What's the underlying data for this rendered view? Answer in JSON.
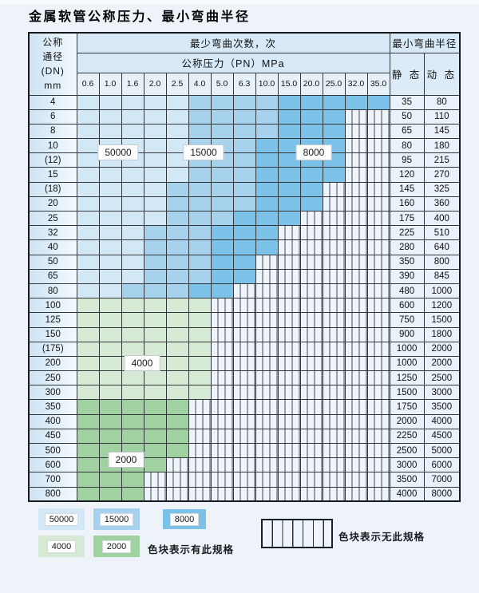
{
  "page": {
    "title": "金属软管公称压力、最小弯曲半径"
  },
  "table": {
    "header": {
      "dn_lines": [
        "公称",
        "通径",
        "(DN)",
        "mm"
      ],
      "cycles_title": "最少弯曲次数，次",
      "radius_title": "最小弯曲半径",
      "pressure_title": "公称压力（PN）MPa",
      "static_label": "静 态",
      "dynamic_label": "动 态",
      "pressures": [
        "0.6",
        "1.0",
        "1.6",
        "2.0",
        "2.5",
        "4.0",
        "5.0",
        "6.3",
        "10.0",
        "15.0",
        "20.0",
        "25.0",
        "32.0",
        "35.0"
      ]
    },
    "zone_colors": {
      "50000": "#d3e8f7",
      "15000": "#a6d2ee",
      "8000": "#7cc1e7",
      "4000": "#d6e9d5",
      "2000": "#a0d1a1",
      "no_spec_fill": "#eef4fb"
    },
    "rows": [
      {
        "dn": "4",
        "cells": [
          "50",
          "50",
          "50",
          "50",
          "50",
          "15",
          "15",
          "15",
          "15",
          "8",
          "8",
          "8",
          "8",
          "8"
        ],
        "static": "35",
        "dynamic": "80"
      },
      {
        "dn": "6",
        "cells": [
          "50",
          "50",
          "50",
          "50",
          "50",
          "15",
          "15",
          "15",
          "15",
          "8",
          "8",
          "8",
          "x",
          "x"
        ],
        "static": "50",
        "dynamic": "110"
      },
      {
        "dn": "8",
        "cells": [
          "50",
          "50",
          "50",
          "50",
          "50",
          "15",
          "15",
          "15",
          "15",
          "8",
          "8",
          "8",
          "x",
          "x"
        ],
        "static": "65",
        "dynamic": "145"
      },
      {
        "dn": "10",
        "cells": [
          "50",
          "50",
          "50",
          "50",
          "50",
          "15",
          "15",
          "15",
          "8",
          "8",
          "8",
          "8",
          "x",
          "x"
        ],
        "static": "80",
        "dynamic": "180"
      },
      {
        "dn": "(12)",
        "cells": [
          "50",
          "50",
          "50",
          "50",
          "50",
          "15",
          "15",
          "15",
          "8",
          "8",
          "8",
          "8",
          "x",
          "x"
        ],
        "static": "95",
        "dynamic": "215"
      },
      {
        "dn": "15",
        "cells": [
          "50",
          "50",
          "50",
          "50",
          "50",
          "15",
          "15",
          "15",
          "8",
          "8",
          "8",
          "8",
          "x",
          "x"
        ],
        "static": "120",
        "dynamic": "270"
      },
      {
        "dn": "(18)",
        "cells": [
          "50",
          "50",
          "50",
          "50",
          "15",
          "15",
          "15",
          "15",
          "8",
          "8",
          "8",
          "x",
          "x",
          "x"
        ],
        "static": "145",
        "dynamic": "325"
      },
      {
        "dn": "20",
        "cells": [
          "50",
          "50",
          "50",
          "50",
          "15",
          "15",
          "15",
          "15",
          "8",
          "8",
          "8",
          "x",
          "x",
          "x"
        ],
        "static": "160",
        "dynamic": "360"
      },
      {
        "dn": "25",
        "cells": [
          "50",
          "50",
          "50",
          "50",
          "15",
          "15",
          "15",
          "8",
          "8",
          "8",
          "x",
          "x",
          "x",
          "x"
        ],
        "static": "175",
        "dynamic": "400"
      },
      {
        "dn": "32",
        "cells": [
          "50",
          "50",
          "50",
          "15",
          "15",
          "15",
          "8",
          "8",
          "8",
          "x",
          "x",
          "x",
          "x",
          "x"
        ],
        "static": "225",
        "dynamic": "510"
      },
      {
        "dn": "40",
        "cells": [
          "50",
          "50",
          "50",
          "15",
          "15",
          "15",
          "8",
          "8",
          "8",
          "x",
          "x",
          "x",
          "x",
          "x"
        ],
        "static": "280",
        "dynamic": "640"
      },
      {
        "dn": "50",
        "cells": [
          "50",
          "50",
          "50",
          "15",
          "15",
          "15",
          "8",
          "8",
          "x",
          "x",
          "x",
          "x",
          "x",
          "x"
        ],
        "static": "350",
        "dynamic": "800"
      },
      {
        "dn": "65",
        "cells": [
          "50",
          "50",
          "50",
          "15",
          "15",
          "15",
          "8",
          "8",
          "x",
          "x",
          "x",
          "x",
          "x",
          "x"
        ],
        "static": "390",
        "dynamic": "845"
      },
      {
        "dn": "80",
        "cells": [
          "50",
          "50",
          "15",
          "15",
          "15",
          "8",
          "8",
          "x",
          "x",
          "x",
          "x",
          "x",
          "x",
          "x"
        ],
        "static": "480",
        "dynamic": "1000"
      },
      {
        "dn": "100",
        "cells": [
          "4",
          "4",
          "4",
          "4",
          "4",
          "4",
          "x",
          "x",
          "x",
          "x",
          "x",
          "x",
          "x",
          "x"
        ],
        "static": "600",
        "dynamic": "1200"
      },
      {
        "dn": "125",
        "cells": [
          "4",
          "4",
          "4",
          "4",
          "4",
          "4",
          "x",
          "x",
          "x",
          "x",
          "x",
          "x",
          "x",
          "x"
        ],
        "static": "750",
        "dynamic": "1500"
      },
      {
        "dn": "150",
        "cells": [
          "4",
          "4",
          "4",
          "4",
          "4",
          "4",
          "x",
          "x",
          "x",
          "x",
          "x",
          "x",
          "x",
          "x"
        ],
        "static": "900",
        "dynamic": "1800"
      },
      {
        "dn": "(175)",
        "cells": [
          "4",
          "4",
          "4",
          "4",
          "4",
          "4",
          "x",
          "x",
          "x",
          "x",
          "x",
          "x",
          "x",
          "x"
        ],
        "static": "1000",
        "dynamic": "2000"
      },
      {
        "dn": "200",
        "cells": [
          "4",
          "4",
          "4",
          "4",
          "4",
          "4",
          "x",
          "x",
          "x",
          "x",
          "x",
          "x",
          "x",
          "x"
        ],
        "static": "1000",
        "dynamic": "2000"
      },
      {
        "dn": "250",
        "cells": [
          "4",
          "4",
          "4",
          "4",
          "4",
          "4",
          "x",
          "x",
          "x",
          "x",
          "x",
          "x",
          "x",
          "x"
        ],
        "static": "1250",
        "dynamic": "2500"
      },
      {
        "dn": "300",
        "cells": [
          "4",
          "4",
          "4",
          "4",
          "4",
          "4",
          "x",
          "x",
          "x",
          "x",
          "x",
          "x",
          "x",
          "x"
        ],
        "static": "1500",
        "dynamic": "3000"
      },
      {
        "dn": "350",
        "cells": [
          "2",
          "2",
          "2",
          "2",
          "2",
          "x",
          "x",
          "x",
          "x",
          "x",
          "x",
          "x",
          "x",
          "x"
        ],
        "static": "1750",
        "dynamic": "3500"
      },
      {
        "dn": "400",
        "cells": [
          "2",
          "2",
          "2",
          "2",
          "2",
          "x",
          "x",
          "x",
          "x",
          "x",
          "x",
          "x",
          "x",
          "x"
        ],
        "static": "2000",
        "dynamic": "4000"
      },
      {
        "dn": "450",
        "cells": [
          "2",
          "2",
          "2",
          "2",
          "2",
          "x",
          "x",
          "x",
          "x",
          "x",
          "x",
          "x",
          "x",
          "x"
        ],
        "static": "2250",
        "dynamic": "4500"
      },
      {
        "dn": "500",
        "cells": [
          "2",
          "2",
          "2",
          "2",
          "2",
          "x",
          "x",
          "x",
          "x",
          "x",
          "x",
          "x",
          "x",
          "x"
        ],
        "static": "2500",
        "dynamic": "5000"
      },
      {
        "dn": "600",
        "cells": [
          "2",
          "2",
          "2",
          "2",
          "x",
          "x",
          "x",
          "x",
          "x",
          "x",
          "x",
          "x",
          "x",
          "x"
        ],
        "static": "3000",
        "dynamic": "6000"
      },
      {
        "dn": "700",
        "cells": [
          "2",
          "2",
          "2",
          "x",
          "x",
          "x",
          "x",
          "x",
          "x",
          "x",
          "x",
          "x",
          "x",
          "x"
        ],
        "static": "3500",
        "dynamic": "7000"
      },
      {
        "dn": "800",
        "cells": [
          "2",
          "2",
          "2",
          "x",
          "x",
          "x",
          "x",
          "x",
          "x",
          "x",
          "x",
          "x",
          "x",
          "x"
        ],
        "static": "4000",
        "dynamic": "8000"
      }
    ],
    "overlay_labels": [
      "50000",
      "15000",
      "8000",
      "4000",
      "2000"
    ]
  },
  "legend": {
    "items": [
      {
        "label": "50000",
        "zone": "50"
      },
      {
        "label": "15000",
        "zone": "15"
      },
      {
        "label": "8000",
        "zone": "8"
      },
      {
        "label": "4000",
        "zone": "4"
      },
      {
        "label": "2000",
        "zone": "2"
      }
    ],
    "has_spec_note": "色块表示有此规格",
    "no_spec_note": "色块表示无此规格"
  }
}
